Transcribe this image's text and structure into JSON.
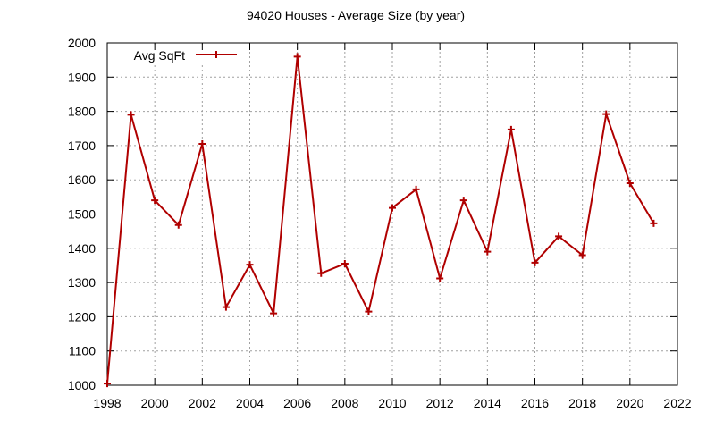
{
  "chart_data": {
    "type": "line",
    "title": "94020 Houses - Average Size (by year)",
    "xlabel": "",
    "ylabel": "",
    "xlim": [
      1998,
      2022
    ],
    "ylim": [
      1000,
      2000
    ],
    "xticks": [
      1998,
      2000,
      2002,
      2004,
      2006,
      2008,
      2010,
      2012,
      2014,
      2016,
      2018,
      2020,
      2022
    ],
    "yticks": [
      1000,
      1100,
      1200,
      1300,
      1400,
      1500,
      1600,
      1700,
      1800,
      1900,
      2000
    ],
    "xtick_labels": [
      "1998",
      "2000",
      "2002",
      "2004",
      "2006",
      "2008",
      "2010",
      "2012",
      "2014",
      "2016",
      "2018",
      "2020",
      "2022"
    ],
    "ytick_labels": [
      "1000",
      "1100",
      "1200",
      "1300",
      "1400",
      "1500",
      "1600",
      "1700",
      "1800",
      "1900",
      "2000"
    ],
    "grid": true,
    "legend_position": "top-left",
    "series": [
      {
        "name": "Avg SqFt",
        "color": "#b00000",
        "marker": "plus",
        "x": [
          1998,
          1999,
          2000,
          2001,
          2002,
          2003,
          2004,
          2005,
          2006,
          2007,
          2008,
          2009,
          2010,
          2011,
          2012,
          2013,
          2014,
          2015,
          2016,
          2017,
          2018,
          2019,
          2020,
          2021
        ],
        "y": [
          1005,
          1790,
          1540,
          1468,
          1705,
          1228,
          1352,
          1210,
          1960,
          1327,
          1355,
          1215,
          1518,
          1572,
          1312,
          1540,
          1390,
          1747,
          1358,
          1435,
          1380,
          1792,
          1590,
          1473
        ]
      }
    ]
  }
}
